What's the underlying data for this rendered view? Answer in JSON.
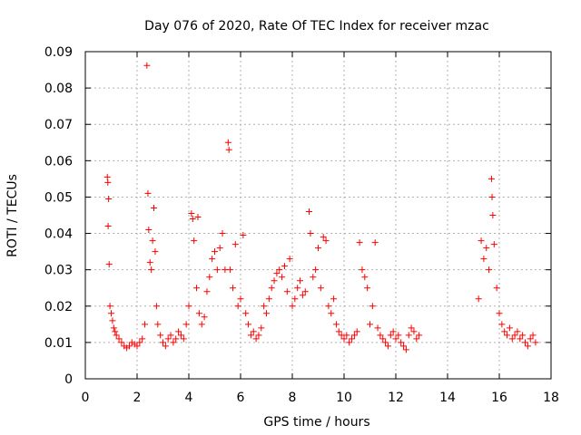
{
  "chart_data": {
    "type": "scatter",
    "title": "Day 076 of 2020, Rate Of TEC Index for receiver mzac",
    "xlabel": "GPS time / hours",
    "ylabel": "ROTI / TECUs",
    "xlim": [
      0,
      18
    ],
    "ylim": [
      0,
      0.09
    ],
    "x_ticks": [
      0,
      2,
      4,
      6,
      8,
      10,
      12,
      14,
      16,
      18
    ],
    "y_ticks": [
      0,
      0.01,
      0.02,
      0.03,
      0.04,
      0.05,
      0.06,
      0.07,
      0.08,
      0.09
    ],
    "x_tick_labels": [
      "0",
      "2",
      "4",
      "6",
      "8",
      "10",
      "12",
      "14",
      "16",
      "18"
    ],
    "y_tick_labels": [
      "0",
      "0.01",
      "0.02",
      "0.03",
      "0.04",
      "0.05",
      "0.06",
      "0.07",
      "0.08",
      "0.09"
    ],
    "grid": true,
    "marker": "+",
    "color": "#ff0000",
    "series": [
      {
        "name": "ROTI",
        "x": [
          0.85,
          0.87,
          0.9,
          0.88,
          0.92,
          0.95,
          1.0,
          1.05,
          1.1,
          1.15,
          1.2,
          1.3,
          1.4,
          1.5,
          1.6,
          1.7,
          1.8,
          1.9,
          2.0,
          2.1,
          2.2,
          2.3,
          2.38,
          2.42,
          2.45,
          2.5,
          2.55,
          2.6,
          2.65,
          2.7,
          2.75,
          2.8,
          2.9,
          3.0,
          3.1,
          3.2,
          3.3,
          3.4,
          3.5,
          3.6,
          3.7,
          3.8,
          3.9,
          4.0,
          4.1,
          4.15,
          4.2,
          4.3,
          4.35,
          4.4,
          4.5,
          4.6,
          4.7,
          4.8,
          4.9,
          5.0,
          5.1,
          5.2,
          5.3,
          5.4,
          5.52,
          5.55,
          5.6,
          5.7,
          5.8,
          5.9,
          6.0,
          6.1,
          6.2,
          6.3,
          6.4,
          6.5,
          6.6,
          6.7,
          6.8,
          6.9,
          7.0,
          7.1,
          7.2,
          7.3,
          7.4,
          7.5,
          7.6,
          7.7,
          7.8,
          7.9,
          8.0,
          8.1,
          8.2,
          8.3,
          8.4,
          8.5,
          8.65,
          8.7,
          8.8,
          8.9,
          9.0,
          9.1,
          9.2,
          9.3,
          9.4,
          9.5,
          9.6,
          9.7,
          9.8,
          9.9,
          10.0,
          10.1,
          10.2,
          10.3,
          10.4,
          10.5,
          10.6,
          10.7,
          10.8,
          10.9,
          11.0,
          11.1,
          11.2,
          11.3,
          11.4,
          11.5,
          11.6,
          11.7,
          11.8,
          11.9,
          12.0,
          12.1,
          12.2,
          12.3,
          12.4,
          12.5,
          12.6,
          12.7,
          12.8,
          12.9,
          15.2,
          15.3,
          15.4,
          15.5,
          15.6,
          15.7,
          15.72,
          15.75,
          15.8,
          15.9,
          16.0,
          16.1,
          16.2,
          16.3,
          16.4,
          16.5,
          16.6,
          16.7,
          16.8,
          16.9,
          17.0,
          17.1,
          17.2,
          17.3,
          17.4
        ],
        "y": [
          0.0555,
          0.054,
          0.0495,
          0.042,
          0.0315,
          0.02,
          0.018,
          0.016,
          0.014,
          0.013,
          0.012,
          0.011,
          0.01,
          0.009,
          0.0085,
          0.009,
          0.01,
          0.0095,
          0.009,
          0.01,
          0.011,
          0.015,
          0.0862,
          0.051,
          0.041,
          0.032,
          0.03,
          0.038,
          0.047,
          0.035,
          0.02,
          0.015,
          0.012,
          0.01,
          0.009,
          0.011,
          0.012,
          0.01,
          0.011,
          0.013,
          0.012,
          0.011,
          0.015,
          0.02,
          0.0455,
          0.044,
          0.038,
          0.025,
          0.0445,
          0.018,
          0.015,
          0.017,
          0.024,
          0.028,
          0.033,
          0.035,
          0.03,
          0.036,
          0.04,
          0.03,
          0.065,
          0.063,
          0.03,
          0.025,
          0.037,
          0.02,
          0.022,
          0.0395,
          0.018,
          0.015,
          0.012,
          0.013,
          0.011,
          0.012,
          0.014,
          0.02,
          0.018,
          0.022,
          0.025,
          0.027,
          0.029,
          0.03,
          0.028,
          0.031,
          0.024,
          0.033,
          0.02,
          0.022,
          0.025,
          0.027,
          0.023,
          0.024,
          0.046,
          0.04,
          0.028,
          0.03,
          0.036,
          0.025,
          0.039,
          0.038,
          0.02,
          0.018,
          0.022,
          0.015,
          0.013,
          0.012,
          0.011,
          0.012,
          0.01,
          0.011,
          0.012,
          0.013,
          0.0375,
          0.03,
          0.028,
          0.025,
          0.015,
          0.02,
          0.0375,
          0.014,
          0.012,
          0.011,
          0.01,
          0.009,
          0.012,
          0.013,
          0.011,
          0.012,
          0.01,
          0.009,
          0.008,
          0.012,
          0.014,
          0.013,
          0.011,
          0.012,
          0.022,
          0.038,
          0.033,
          0.036,
          0.03,
          0.055,
          0.05,
          0.045,
          0.037,
          0.025,
          0.018,
          0.015,
          0.013,
          0.012,
          0.014,
          0.011,
          0.012,
          0.013,
          0.011,
          0.012,
          0.01,
          0.009,
          0.011,
          0.012,
          0.01
        ]
      }
    ]
  }
}
